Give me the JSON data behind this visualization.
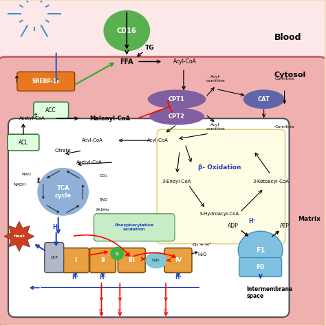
{
  "bg_outer": "#f5deb3",
  "bg_blood": "#faf0f0",
  "bg_cytosol": "#fde8c8",
  "bg_mito_outer": "#f0b0b0",
  "bg_mito_inner": "#ffffff",
  "bg_beta_ox": "#fffde0",
  "bg_phosph": "#d8f0d0",
  "blood_label": "Blood",
  "cytosol_label": "Cytosol",
  "matrix_label": "Matrix",
  "intermembrane_label": "Intermembrane\nspace"
}
